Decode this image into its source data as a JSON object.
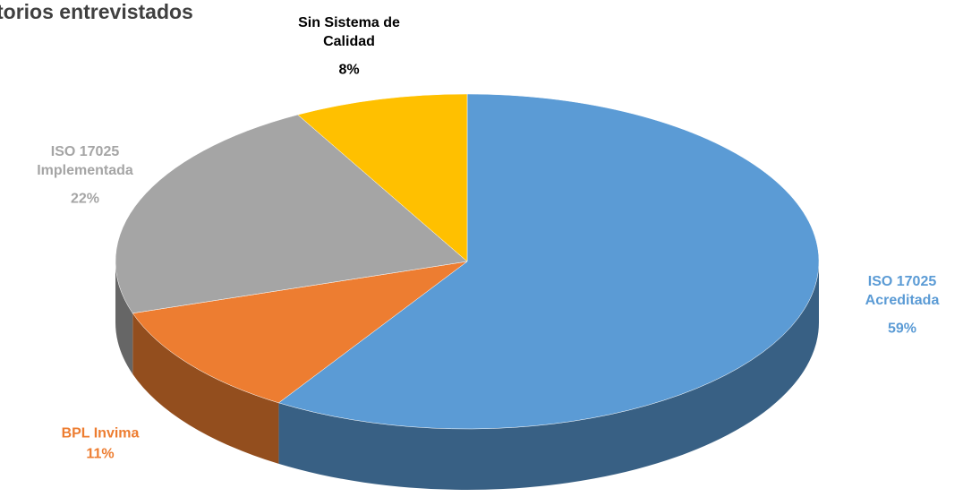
{
  "chart_data": {
    "type": "pie",
    "title": "torios entrevistados",
    "categories": [
      "ISO 17025 Acreditada",
      "BPL Invima",
      "ISO 17025 Implementada",
      "Sin Sistema de Calidad"
    ],
    "values": [
      59,
      11,
      22,
      8
    ],
    "value_labels": [
      "59%",
      "11%",
      "22%",
      "8%"
    ],
    "colors": [
      "#5b9bd5",
      "#ed7d31",
      "#a5a5a5",
      "#ffc000"
    ],
    "label_colors": [
      "#5b9bd5",
      "#ed7d31",
      "#a5a5a5",
      "#000000"
    ]
  }
}
